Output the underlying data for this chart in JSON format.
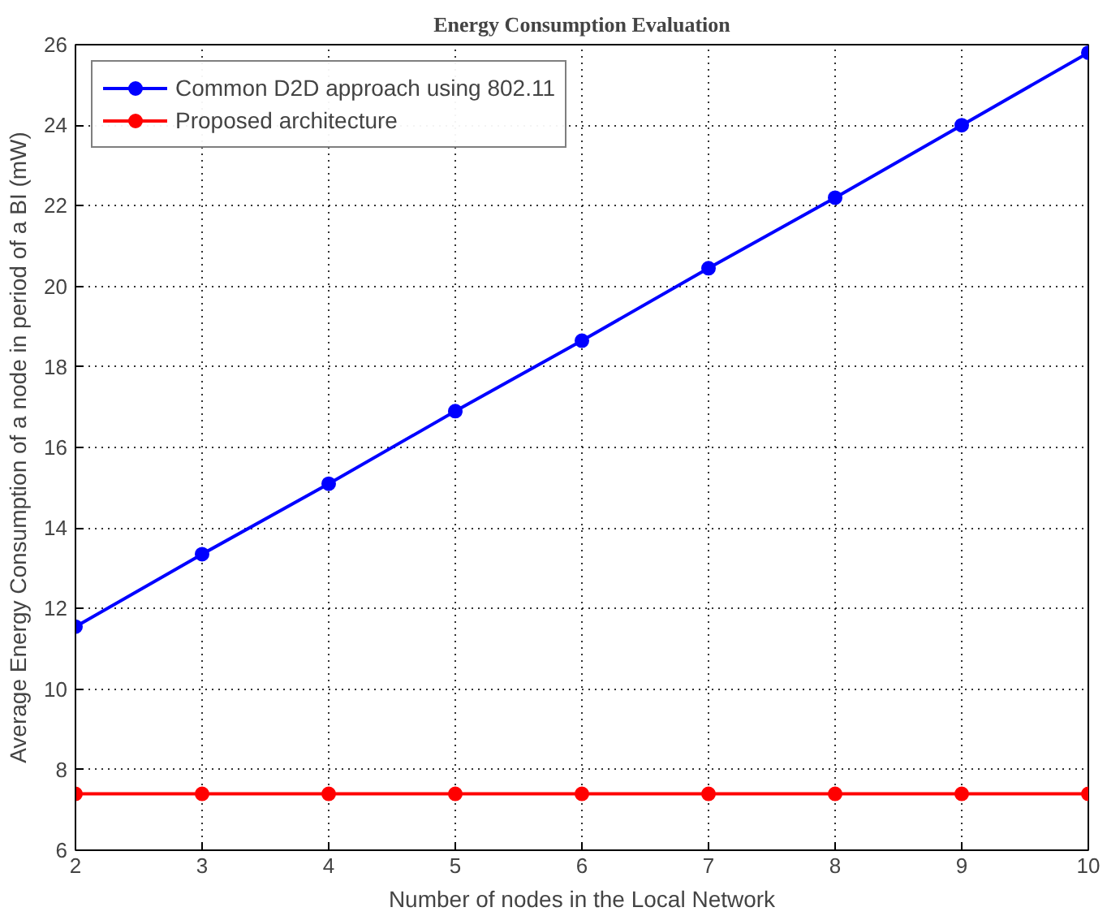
{
  "chart_data": {
    "type": "line",
    "title": "Energy Consumption Evaluation",
    "xlabel": "Number of nodes in the Local Network",
    "ylabel": "Average Energy Consumption of a node in period of a BI (mW)",
    "x": [
      2,
      3,
      4,
      5,
      6,
      7,
      8,
      9,
      10
    ],
    "series": [
      {
        "name": "Common D2D approach using 802.11",
        "color": "#0000ff",
        "values": [
          11.55,
          13.35,
          15.1,
          16.9,
          18.65,
          20.45,
          22.2,
          24.0,
          25.8
        ]
      },
      {
        "name": "Proposed architecture",
        "color": "#ff0000",
        "values": [
          7.4,
          7.4,
          7.4,
          7.4,
          7.4,
          7.4,
          7.4,
          7.4,
          7.4
        ]
      }
    ],
    "xlim": [
      2,
      10
    ],
    "xticks": [
      2,
      3,
      4,
      5,
      6,
      7,
      8,
      9,
      10
    ],
    "ylim": [
      6,
      26
    ],
    "yticks": [
      6,
      8,
      10,
      12,
      14,
      16,
      18,
      20,
      22,
      24,
      26
    ],
    "grid": true,
    "legend": "top left",
    "marker": "circle",
    "line_style": "solid"
  }
}
